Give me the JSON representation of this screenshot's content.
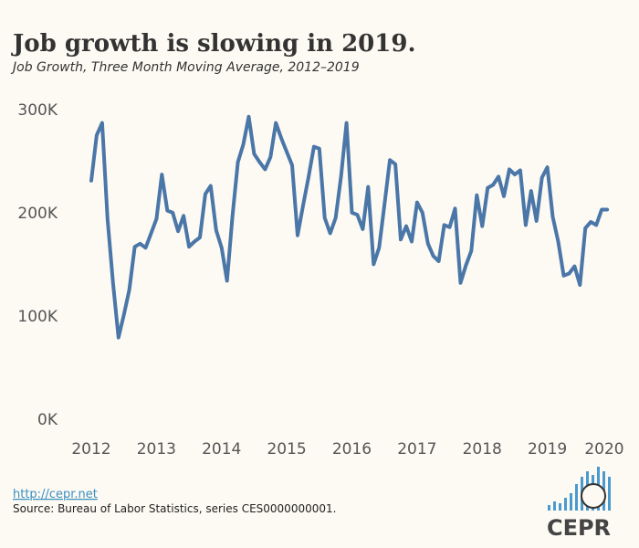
{
  "chart_data": {
    "type": "line",
    "title": "Job growth is slowing in 2019.",
    "subtitle": "Job Growth, Three Month Moving Average, 2012–2019",
    "link": "http://cepr.net",
    "source": "Source: Bureau of Labor Statistics, series CES0000000001.",
    "logo": "CEPR",
    "xlim": [
      2012,
      2020
    ],
    "xticks": [
      2012,
      2013,
      2014,
      2015,
      2016,
      2017,
      2018,
      2019,
      2020
    ],
    "ylim": [
      0,
      300000
    ],
    "yticks": [
      {
        "value": 0,
        "label": "0K"
      },
      {
        "value": 100000,
        "label": "100K"
      },
      {
        "value": 200000,
        "label": "200K"
      },
      {
        "value": 300000,
        "label": "300K"
      }
    ],
    "grid": false,
    "series": [
      {
        "color": "#4a76a8",
        "x": [
          2012,
          2012.083,
          2012.167,
          2012.25,
          2012.333,
          2012.417,
          2012.5,
          2012.583,
          2012.667,
          2012.75,
          2012.833,
          2012.917,
          2013,
          2013.083,
          2013.167,
          2013.25,
          2013.333,
          2013.417,
          2013.5,
          2013.583,
          2013.667,
          2013.75,
          2013.833,
          2013.917,
          2014,
          2014.083,
          2014.167,
          2014.25,
          2014.333,
          2014.417,
          2014.5,
          2014.583,
          2014.667,
          2014.75,
          2014.833,
          2014.917,
          2015,
          2015.083,
          2015.167,
          2015.25,
          2015.333,
          2015.417,
          2015.5,
          2015.583,
          2015.667,
          2015.75,
          2015.833,
          2015.917,
          2016,
          2016.083,
          2016.167,
          2016.25,
          2016.333,
          2016.417,
          2016.5,
          2016.583,
          2016.667,
          2016.75,
          2016.833,
          2016.917,
          2017,
          2017.083,
          2017.167,
          2017.25,
          2017.333,
          2017.417,
          2017.5,
          2017.583,
          2017.667,
          2017.75,
          2017.833,
          2017.917,
          2018,
          2018.083,
          2018.167,
          2018.25,
          2018.333,
          2018.417,
          2018.5,
          2018.583,
          2018.667,
          2018.75,
          2018.833,
          2018.917,
          2019,
          2019.083,
          2019.167,
          2019.25,
          2019.333,
          2019.417,
          2019.5,
          2019.583,
          2019.667,
          2019.75,
          2019.833,
          2019.917
        ],
        "values": [
          232000,
          276000,
          288000,
          195000,
          133000,
          80000,
          102000,
          126000,
          168000,
          171000,
          167000,
          181000,
          195000,
          238000,
          203000,
          201000,
          183000,
          198000,
          168000,
          173000,
          177000,
          219000,
          227000,
          184000,
          167000,
          135000,
          198000,
          250000,
          267000,
          294000,
          258000,
          250000,
          243000,
          255000,
          288000,
          273000,
          260000,
          247000,
          179000,
          208000,
          235000,
          265000,
          263000,
          196000,
          181000,
          196000,
          236000,
          288000,
          201000,
          199000,
          185000,
          226000,
          151000,
          167000,
          209000,
          252000,
          248000,
          175000,
          188000,
          173000,
          211000,
          201000,
          171000,
          159000,
          154000,
          189000,
          187000,
          205000,
          133000,
          150000,
          164000,
          218000,
          188000,
          225000,
          228000,
          236000,
          217000,
          243000,
          238000,
          242000,
          189000,
          222000,
          193000,
          235000,
          245000,
          197000,
          173000,
          140000,
          142000,
          149000,
          131000,
          186000,
          192000,
          189000,
          204000,
          204000
        ]
      }
    ]
  }
}
